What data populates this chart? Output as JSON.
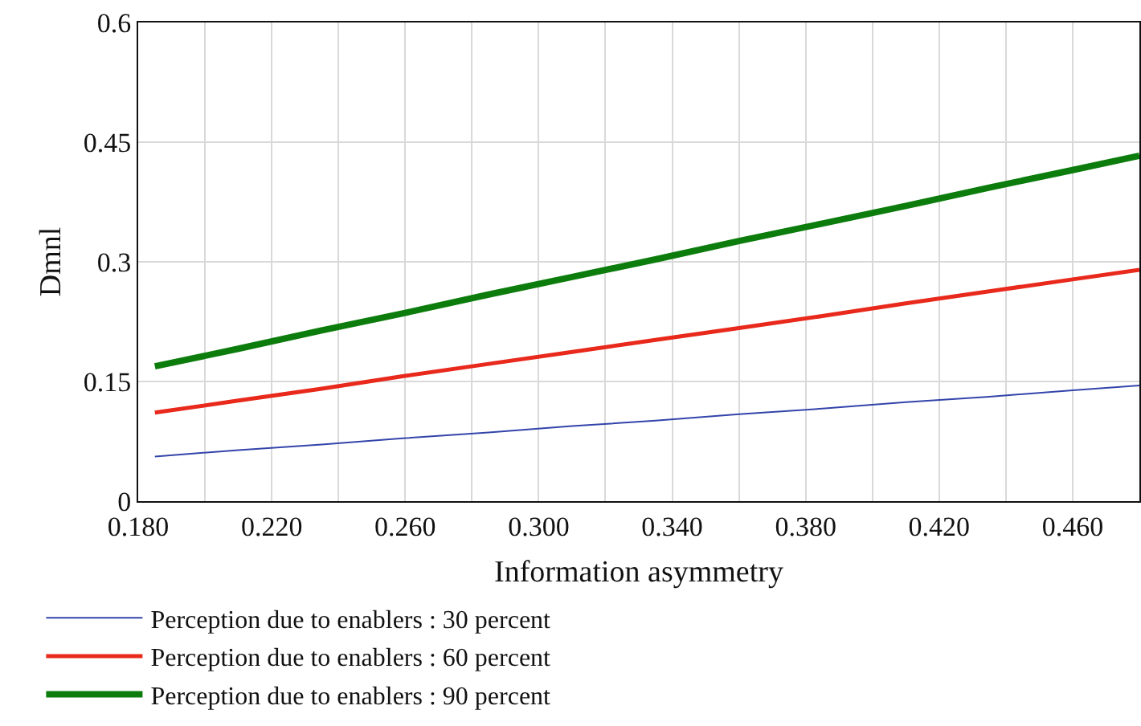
{
  "chart_data": {
    "type": "line",
    "xlabel": "Information asymmetry",
    "ylabel": "Dmnl",
    "x": [
      0.185,
      0.21,
      0.235,
      0.26,
      0.285,
      0.31,
      0.335,
      0.36,
      0.385,
      0.41,
      0.435,
      0.46,
      0.48
    ],
    "series": [
      {
        "name": "Perception due to enablers : 30 percent",
        "color": "#3344aa",
        "values": [
          0.056,
          0.064,
          0.071,
          0.079,
          0.086,
          0.094,
          0.101,
          0.109,
          0.116,
          0.124,
          0.131,
          0.139,
          0.145
        ]
      },
      {
        "name": "Perception due to enablers : 60 percent",
        "color": "#e8291c",
        "values": [
          0.111,
          0.126,
          0.141,
          0.157,
          0.172,
          0.187,
          0.202,
          0.217,
          0.232,
          0.248,
          0.263,
          0.278,
          0.29
        ]
      },
      {
        "name": "Perception due to enablers : 90 percent",
        "color": "#0c7d0c",
        "values": [
          0.169,
          0.191,
          0.214,
          0.236,
          0.259,
          0.281,
          0.303,
          0.326,
          0.348,
          0.37,
          0.393,
          0.415,
          0.433
        ]
      }
    ],
    "xlim": [
      0.18,
      0.48
    ],
    "xticks": [
      {
        "value": 0.18,
        "label": "0.180"
      },
      {
        "value": 0.2,
        "label": null
      },
      {
        "value": 0.22,
        "label": "0.220"
      },
      {
        "value": 0.24,
        "label": null
      },
      {
        "value": 0.26,
        "label": "0.260"
      },
      {
        "value": 0.28,
        "label": null
      },
      {
        "value": 0.3,
        "label": "0.300"
      },
      {
        "value": 0.32,
        "label": null
      },
      {
        "value": 0.34,
        "label": "0.340"
      },
      {
        "value": 0.36,
        "label": null
      },
      {
        "value": 0.38,
        "label": "0.380"
      },
      {
        "value": 0.4,
        "label": null
      },
      {
        "value": 0.42,
        "label": "0.420"
      },
      {
        "value": 0.44,
        "label": null
      },
      {
        "value": 0.46,
        "label": "0.460"
      },
      {
        "value": 0.48,
        "label": null
      }
    ],
    "ylim": [
      0,
      0.6
    ],
    "yticks": [
      0,
      0.15,
      0.3,
      0.45,
      0.6
    ],
    "grid": true,
    "legend": "bottom",
    "marker": "none",
    "line_style": "solid"
  }
}
